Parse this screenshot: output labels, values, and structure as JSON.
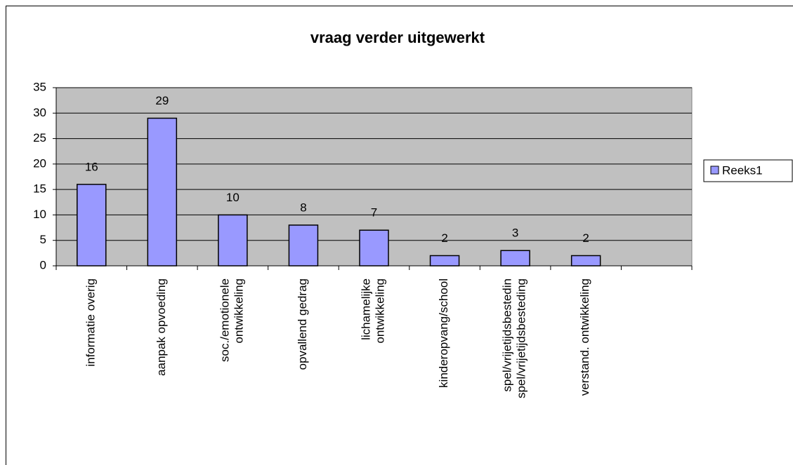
{
  "chart_data": {
    "type": "bar",
    "title": "vraag verder uitgewerkt",
    "categories": [
      "informatie overig",
      "aanpak opvoeding",
      "soc./emotionele ontwikkeling",
      "opvallend gedrag",
      "lichamelijke ontwikkeling",
      "kinderopvang/school",
      "spel/vrijetijdsbesteding",
      "verstand. ontwikkeling",
      null
    ],
    "series": [
      {
        "name": "Reeks1",
        "color": "#9999ff",
        "values": [
          16,
          29,
          10,
          8,
          7,
          2,
          3,
          2,
          null
        ]
      }
    ],
    "ylim": [
      0,
      35
    ],
    "yticks": [
      0,
      5,
      10,
      15,
      20,
      25,
      30,
      35
    ],
    "grid": true,
    "legend": "right",
    "data_labels": true
  }
}
